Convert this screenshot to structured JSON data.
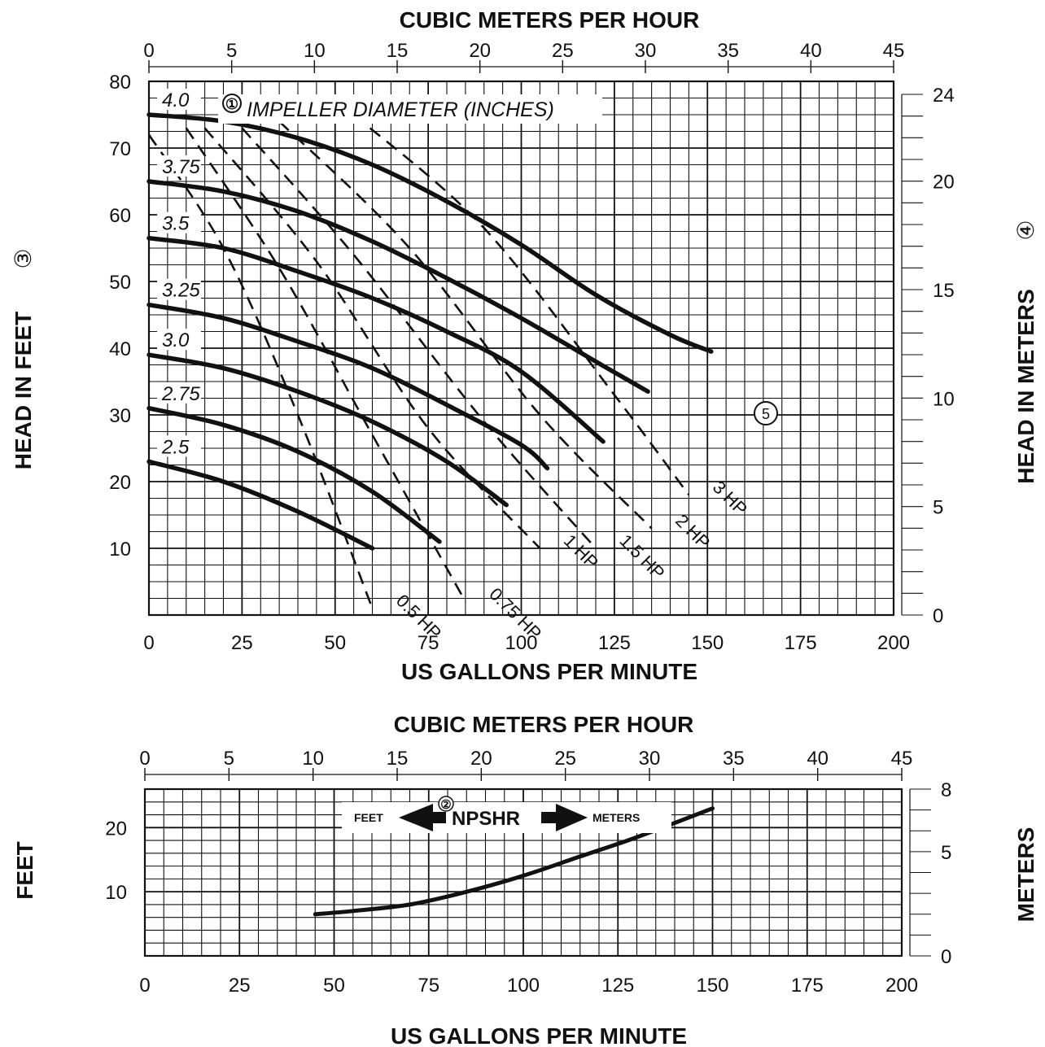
{
  "main_chart": {
    "top_axis_title": "CUBIC METERS PER HOUR",
    "bottom_axis_title": "US GALLONS PER MINUTE",
    "left_axis_title": "HEAD IN FEET",
    "right_axis_title": "HEAD IN METERS",
    "left_marker": "③",
    "right_marker": "④",
    "impeller_marker": "①",
    "impeller_title": "IMPELLER DIAMETER (INCHES)",
    "hp_marker": "⑤"
  },
  "npshr_chart": {
    "top_axis_title": "CUBIC METERS PER HOUR",
    "bottom_axis_title": "US GALLONS PER MINUTE",
    "left_axis_title": "FEET",
    "right_axis_title": "METERS",
    "center_label": "NPSHR",
    "center_marker": "②",
    "feet_label": "FEET",
    "meters_label": "METERS"
  },
  "chart_data": [
    {
      "type": "line",
      "x_unit": "US gallons per minute",
      "y_unit": "feet of head",
      "xlim": [
        0,
        200
      ],
      "ylim": [
        0,
        80
      ],
      "x_ticks": [
        "0",
        "25",
        "50",
        "75",
        "100",
        "125",
        "150",
        "175",
        "200"
      ],
      "y_ticks": [
        "10",
        "20",
        "30",
        "40",
        "50",
        "60",
        "70",
        "80"
      ],
      "top_ticks": [
        "0",
        "5",
        "10",
        "15",
        "20",
        "25",
        "30",
        "35",
        "40",
        "45"
      ],
      "top_range_m3h": [
        0,
        45
      ],
      "right_ticks": [
        "0",
        "5",
        "10",
        "15",
        "20",
        "24"
      ],
      "right_range_m": [
        0,
        24
      ],
      "grid": true,
      "series": [
        {
          "name": "4.0",
          "x": [
            0,
            20,
            40,
            60,
            80,
            100,
            120,
            140,
            151
          ],
          "y": [
            75,
            74,
            71.5,
            67.5,
            62,
            55.5,
            48,
            42,
            39.5
          ]
        },
        {
          "name": "3.75",
          "x": [
            0,
            20,
            40,
            60,
            80,
            100,
            120,
            134
          ],
          "y": [
            65,
            63.5,
            60.5,
            56,
            50.5,
            44.5,
            38,
            33.5
          ]
        },
        {
          "name": "3.5",
          "x": [
            0,
            20,
            40,
            60,
            80,
            100,
            122
          ],
          "y": [
            56.5,
            55,
            51.5,
            47.5,
            42.5,
            36.5,
            26
          ]
        },
        {
          "name": "3.25",
          "x": [
            0,
            20,
            40,
            60,
            80,
            100,
            107
          ],
          "y": [
            46.5,
            44.5,
            41,
            37,
            31.5,
            25.5,
            22
          ]
        },
        {
          "name": "3.0",
          "x": [
            0,
            20,
            40,
            60,
            80,
            96
          ],
          "y": [
            39,
            37,
            33.5,
            29,
            23,
            16.5
          ]
        },
        {
          "name": "2.75",
          "x": [
            0,
            20,
            40,
            60,
            78
          ],
          "y": [
            31,
            28.5,
            24.5,
            18.5,
            11
          ]
        },
        {
          "name": "2.5",
          "x": [
            0,
            20,
            40,
            60
          ],
          "y": [
            23,
            20,
            15.5,
            10
          ]
        }
      ],
      "power_lines": [
        {
          "name": "0.5 HP",
          "x": [
            0,
            20,
            40,
            60
          ],
          "y": [
            72,
            55,
            30,
            1
          ]
        },
        {
          "name": "0.75 HP",
          "x": [
            10,
            35,
            60,
            85
          ],
          "y": [
            73,
            52,
            27,
            2
          ]
        },
        {
          "name": "1 HP",
          "x": [
            15,
            45,
            75,
            105
          ],
          "y": [
            73,
            53,
            28,
            10
          ]
        },
        {
          "name": "1.5 HP",
          "x": [
            25,
            55,
            90,
            120
          ],
          "y": [
            73,
            54,
            29,
            10
          ]
        },
        {
          "name": "2 HP",
          "x": [
            35,
            70,
            105,
            135
          ],
          "y": [
            74,
            55,
            30,
            13
          ]
        },
        {
          "name": "3 HP",
          "x": [
            55,
            90,
            125,
            145
          ],
          "y": [
            75,
            58,
            33,
            18
          ]
        }
      ]
    },
    {
      "type": "line",
      "title": "NPSHR",
      "x_unit": "US gallons per minute",
      "y_unit": "feet",
      "xlim": [
        0,
        200
      ],
      "ylim": [
        0,
        26
      ],
      "x_ticks": [
        "0",
        "25",
        "50",
        "75",
        "100",
        "125",
        "150",
        "175",
        "200"
      ],
      "y_ticks": [
        "10",
        "20"
      ],
      "top_ticks": [
        "0",
        "5",
        "10",
        "15",
        "20",
        "25",
        "30",
        "35",
        "40",
        "45"
      ],
      "top_range_m3h": [
        0,
        45
      ],
      "right_ticks": [
        "0",
        "5",
        "8"
      ],
      "right_range_m": [
        0,
        8
      ],
      "grid": true,
      "series": [
        {
          "name": "NPSHR",
          "x": [
            45,
            55,
            70,
            85,
            100,
            115,
            130,
            150
          ],
          "y": [
            6.5,
            7,
            8,
            10,
            12.5,
            15.5,
            18.5,
            23
          ]
        }
      ]
    }
  ]
}
